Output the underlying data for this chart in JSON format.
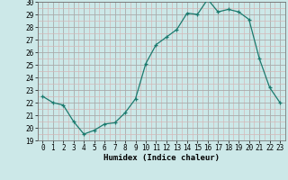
{
  "x": [
    0,
    1,
    2,
    3,
    4,
    5,
    6,
    7,
    8,
    9,
    10,
    11,
    12,
    13,
    14,
    15,
    16,
    17,
    18,
    19,
    20,
    21,
    22,
    23
  ],
  "y": [
    22.5,
    22.0,
    21.8,
    20.5,
    19.5,
    19.8,
    20.3,
    20.4,
    21.2,
    22.3,
    25.1,
    26.6,
    27.2,
    27.8,
    29.1,
    29.0,
    30.2,
    29.2,
    29.4,
    29.2,
    28.6,
    25.5,
    23.2,
    22.0
  ],
  "line_color": "#1a7a6e",
  "marker": "+",
  "marker_color": "#1a7a6e",
  "bg_color": "#cce8e8",
  "grid_color_major": "#aaaaaa",
  "grid_color_minor": "#d4b8b8",
  "xlabel": "Humidex (Indice chaleur)",
  "ylim": [
    19,
    30
  ],
  "xlim_min": -0.5,
  "xlim_max": 23.5,
  "yticks": [
    19,
    20,
    21,
    22,
    23,
    24,
    25,
    26,
    27,
    28,
    29,
    30
  ],
  "xticks": [
    0,
    1,
    2,
    3,
    4,
    5,
    6,
    7,
    8,
    9,
    10,
    11,
    12,
    13,
    14,
    15,
    16,
    17,
    18,
    19,
    20,
    21,
    22,
    23
  ],
  "xlabel_fontsize": 6.5,
  "tick_fontsize": 5.5
}
